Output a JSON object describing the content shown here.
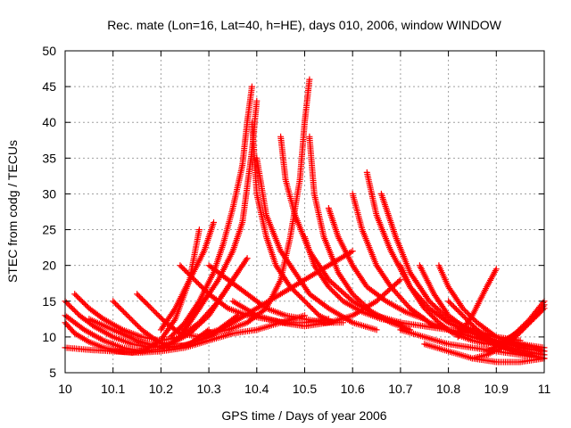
{
  "chart_data": {
    "type": "scatter",
    "title": "Rec. mate (Lon=16, Lat=40, h=HE), days 010, 2006, window WINDOW",
    "xlabel": "GPS time / Days of year 2006",
    "ylabel": "STEC from codg / TECUs",
    "xlim": [
      10,
      11
    ],
    "ylim": [
      5,
      50
    ],
    "xticks": [
      10,
      10.1,
      10.2,
      10.3,
      10.4,
      10.5,
      10.6,
      10.7,
      10.8,
      10.9,
      11
    ],
    "xtick_labels": [
      "10",
      "10.1",
      "10.2",
      "10.3",
      "10.4",
      "10.5",
      "10.6",
      "10.7",
      "10.8",
      "10.9",
      "11"
    ],
    "yticks": [
      5,
      10,
      15,
      20,
      25,
      30,
      35,
      40,
      45,
      50
    ],
    "ytick_labels": [
      "5",
      "10",
      "15",
      "20",
      "25",
      "30",
      "35",
      "40",
      "45",
      "50"
    ],
    "grid": true,
    "marker": "plus",
    "color": "#ff0000",
    "series": [
      {
        "x": [
          10.0,
          10.02,
          10.05,
          10.08,
          10.11,
          10.14,
          10.17,
          10.2,
          10.23,
          10.26,
          10.28
        ],
        "y": [
          12,
          10.5,
          9.3,
          8.5,
          8.0,
          7.8,
          8.3,
          9.6,
          12.5,
          18,
          25
        ]
      },
      {
        "x": [
          10.2,
          10.23,
          10.26,
          10.29,
          10.31
        ],
        "y": [
          11,
          14,
          18,
          22,
          26
        ]
      },
      {
        "x": [
          10.22,
          10.25,
          10.28,
          10.31,
          10.33,
          10.35,
          10.37,
          10.38,
          10.39
        ],
        "y": [
          10,
          12,
          15,
          19,
          23,
          28,
          34,
          40,
          45
        ]
      },
      {
        "x": [
          10.39,
          10.4,
          10.42,
          10.44,
          10.47,
          10.5,
          10.53,
          10.56
        ],
        "y": [
          40,
          30,
          24,
          20,
          17,
          15,
          13,
          12
        ]
      },
      {
        "x": [
          10.24,
          10.28,
          10.32,
          10.35,
          10.37,
          10.38,
          10.39,
          10.4
        ],
        "y": [
          11,
          14,
          18,
          22,
          26,
          31,
          36,
          43
        ]
      },
      {
        "x": [
          10.4,
          10.42,
          10.45,
          10.48,
          10.51,
          10.55,
          10.6,
          10.65
        ],
        "y": [
          35,
          27,
          22,
          19,
          16,
          14,
          12,
          11
        ]
      },
      {
        "x": [
          10.3,
          10.34,
          10.38,
          10.42,
          10.45,
          10.47,
          10.49,
          10.5,
          10.51
        ],
        "y": [
          10.5,
          11,
          12,
          14,
          18,
          24,
          32,
          40,
          46
        ]
      },
      {
        "x": [
          10.51,
          10.52,
          10.54,
          10.57,
          10.6,
          10.64,
          10.68,
          10.72
        ],
        "y": [
          38,
          30,
          24,
          19,
          16,
          13.5,
          12,
          11
        ]
      },
      {
        "x": [
          10.45,
          10.46,
          10.48,
          10.51,
          10.55,
          10.6,
          10.65,
          10.7
        ],
        "y": [
          38,
          32,
          27,
          22,
          18,
          15,
          13,
          12
        ]
      },
      {
        "x": [
          10.5,
          10.52,
          10.55,
          10.58,
          10.62,
          10.66,
          10.7,
          10.75,
          10.8,
          10.85,
          10.9,
          10.95
        ],
        "y": [
          24,
          20,
          17,
          15,
          13.5,
          12.5,
          12,
          11.5,
          11,
          10.5,
          10,
          9.5
        ]
      },
      {
        "x": [
          10.55,
          10.57,
          10.6,
          10.63,
          10.67,
          10.71,
          10.75
        ],
        "y": [
          28,
          24,
          20,
          17,
          15,
          13.5,
          12.5
        ]
      },
      {
        "x": [
          10.6,
          10.62,
          10.65,
          10.68,
          10.72,
          10.76,
          10.8,
          10.85,
          10.9
        ],
        "y": [
          30,
          25,
          20,
          17,
          14,
          12,
          11,
          10,
          9
        ]
      },
      {
        "x": [
          10.63,
          10.65,
          10.68,
          10.72,
          10.76,
          10.8,
          10.85,
          10.9,
          10.95,
          11.0
        ],
        "y": [
          33,
          27,
          22,
          17,
          14,
          12,
          10.5,
          9.5,
          8.5,
          8
        ]
      },
      {
        "x": [
          10.66,
          10.69,
          10.72,
          10.76,
          10.8,
          10.85,
          10.9,
          10.95,
          11.0
        ],
        "y": [
          30,
          24,
          19,
          15,
          12.5,
          11,
          10,
          9,
          8.5
        ]
      },
      {
        "x": [
          10.0,
          10.05,
          10.1,
          10.15,
          10.2,
          10.25,
          10.3,
          10.35,
          10.4,
          10.45,
          10.5
        ],
        "y": [
          8.5,
          8.2,
          8,
          7.8,
          8,
          8.5,
          9.5,
          10.5,
          11,
          12,
          13
        ]
      },
      {
        "x": [
          10.0,
          10.04,
          10.08,
          10.12,
          10.16,
          10.2,
          10.24,
          10.28
        ],
        "y": [
          13,
          11,
          9.5,
          8.5,
          8,
          8.3,
          10,
          14
        ]
      },
      {
        "x": [
          10.0,
          10.03,
          10.06,
          10.1,
          10.14,
          10.18,
          10.22,
          10.26,
          10.3,
          10.34,
          10.38
        ],
        "y": [
          15,
          13,
          11.5,
          10,
          9,
          8.5,
          9,
          10.5,
          13,
          17,
          21
        ]
      },
      {
        "x": [
          10.02,
          10.05,
          10.08,
          10.12,
          10.16,
          10.2,
          10.24,
          10.28,
          10.32,
          10.36
        ],
        "y": [
          16,
          14,
          12.5,
          11,
          10,
          9.5,
          10,
          12,
          15,
          19
        ]
      },
      {
        "x": [
          10.1,
          10.13,
          10.16,
          10.19,
          10.22,
          10.26,
          10.3
        ],
        "y": [
          15,
          13,
          11,
          9.5,
          8.5,
          9,
          11
        ]
      },
      {
        "x": [
          10.05,
          10.1,
          10.15,
          10.2,
          10.25,
          10.3,
          10.35,
          10.4,
          10.45,
          10.5,
          10.55,
          10.6
        ],
        "y": [
          12.5,
          11,
          9.5,
          8.5,
          8.8,
          10,
          12,
          14,
          16,
          18,
          20,
          22
        ]
      },
      {
        "x": [
          10.15,
          10.18,
          10.21,
          10.24,
          10.28,
          10.32,
          10.36
        ],
        "y": [
          16,
          14,
          12,
          10.5,
          10,
          11,
          13
        ]
      },
      {
        "x": [
          10.24,
          10.27,
          10.3,
          10.34,
          10.38,
          10.42,
          10.46,
          10.5,
          10.55
        ],
        "y": [
          20,
          18,
          16,
          14,
          13,
          12.5,
          12,
          12,
          12.5
        ]
      },
      {
        "x": [
          10.3,
          10.34,
          10.38,
          10.42,
          10.46,
          10.5,
          10.54,
          10.58
        ],
        "y": [
          20,
          18,
          16,
          14,
          13,
          12.5,
          12,
          12
        ]
      },
      {
        "x": [
          10.35,
          10.4,
          10.45,
          10.5,
          10.55,
          10.6,
          10.65,
          10.7
        ],
        "y": [
          15,
          13,
          12,
          11.5,
          12,
          13,
          15,
          18
        ]
      },
      {
        "x": [
          10.7,
          10.72,
          10.75,
          10.78,
          10.81,
          10.85,
          10.88,
          10.9
        ],
        "y": [
          20,
          17,
          14,
          12,
          10.5,
          9.5,
          9,
          9.5
        ]
      },
      {
        "x": [
          10.74,
          10.77,
          10.8,
          10.84,
          10.88,
          10.92,
          10.96,
          11.0
        ],
        "y": [
          20,
          16,
          13,
          11,
          9.5,
          8.5,
          8,
          7.5
        ]
      },
      {
        "x": [
          10.78,
          10.8,
          10.83,
          10.86,
          10.9,
          10.94,
          10.98,
          11.0
        ],
        "y": [
          20,
          17,
          14,
          12,
          10,
          9,
          8.5,
          8
        ]
      },
      {
        "x": [
          10.8,
          10.83,
          10.86,
          10.9,
          10.94,
          10.97,
          11.0
        ],
        "y": [
          15,
          13,
          11,
          9,
          8,
          7.5,
          7
        ]
      },
      {
        "x": [
          10.82,
          10.85,
          10.88,
          10.9
        ],
        "y": [
          10,
          13,
          17,
          19.5
        ]
      },
      {
        "x": [
          10.75,
          10.8,
          10.85,
          10.9,
          10.95,
          11.0
        ],
        "y": [
          9,
          8,
          7,
          6.5,
          6.5,
          7
        ]
      },
      {
        "x": [
          10.85,
          10.88,
          10.91,
          10.94,
          10.97,
          11.0
        ],
        "y": [
          7,
          7.5,
          8.5,
          10,
          12,
          14
        ]
      },
      {
        "x": [
          10.88,
          10.91,
          10.94,
          10.97,
          11.0
        ],
        "y": [
          8,
          9,
          10.5,
          12.5,
          15
        ]
      },
      {
        "x": [
          10.9,
          10.93,
          10.96,
          10.99,
          11.0
        ],
        "y": [
          9,
          10,
          11.5,
          13.5,
          14.5
        ]
      },
      {
        "x": [
          10.7,
          10.75,
          10.8,
          10.85,
          10.9,
          10.95,
          11.0
        ],
        "y": [
          11,
          10,
          9,
          8.5,
          8,
          7.5,
          7
        ]
      }
    ]
  }
}
